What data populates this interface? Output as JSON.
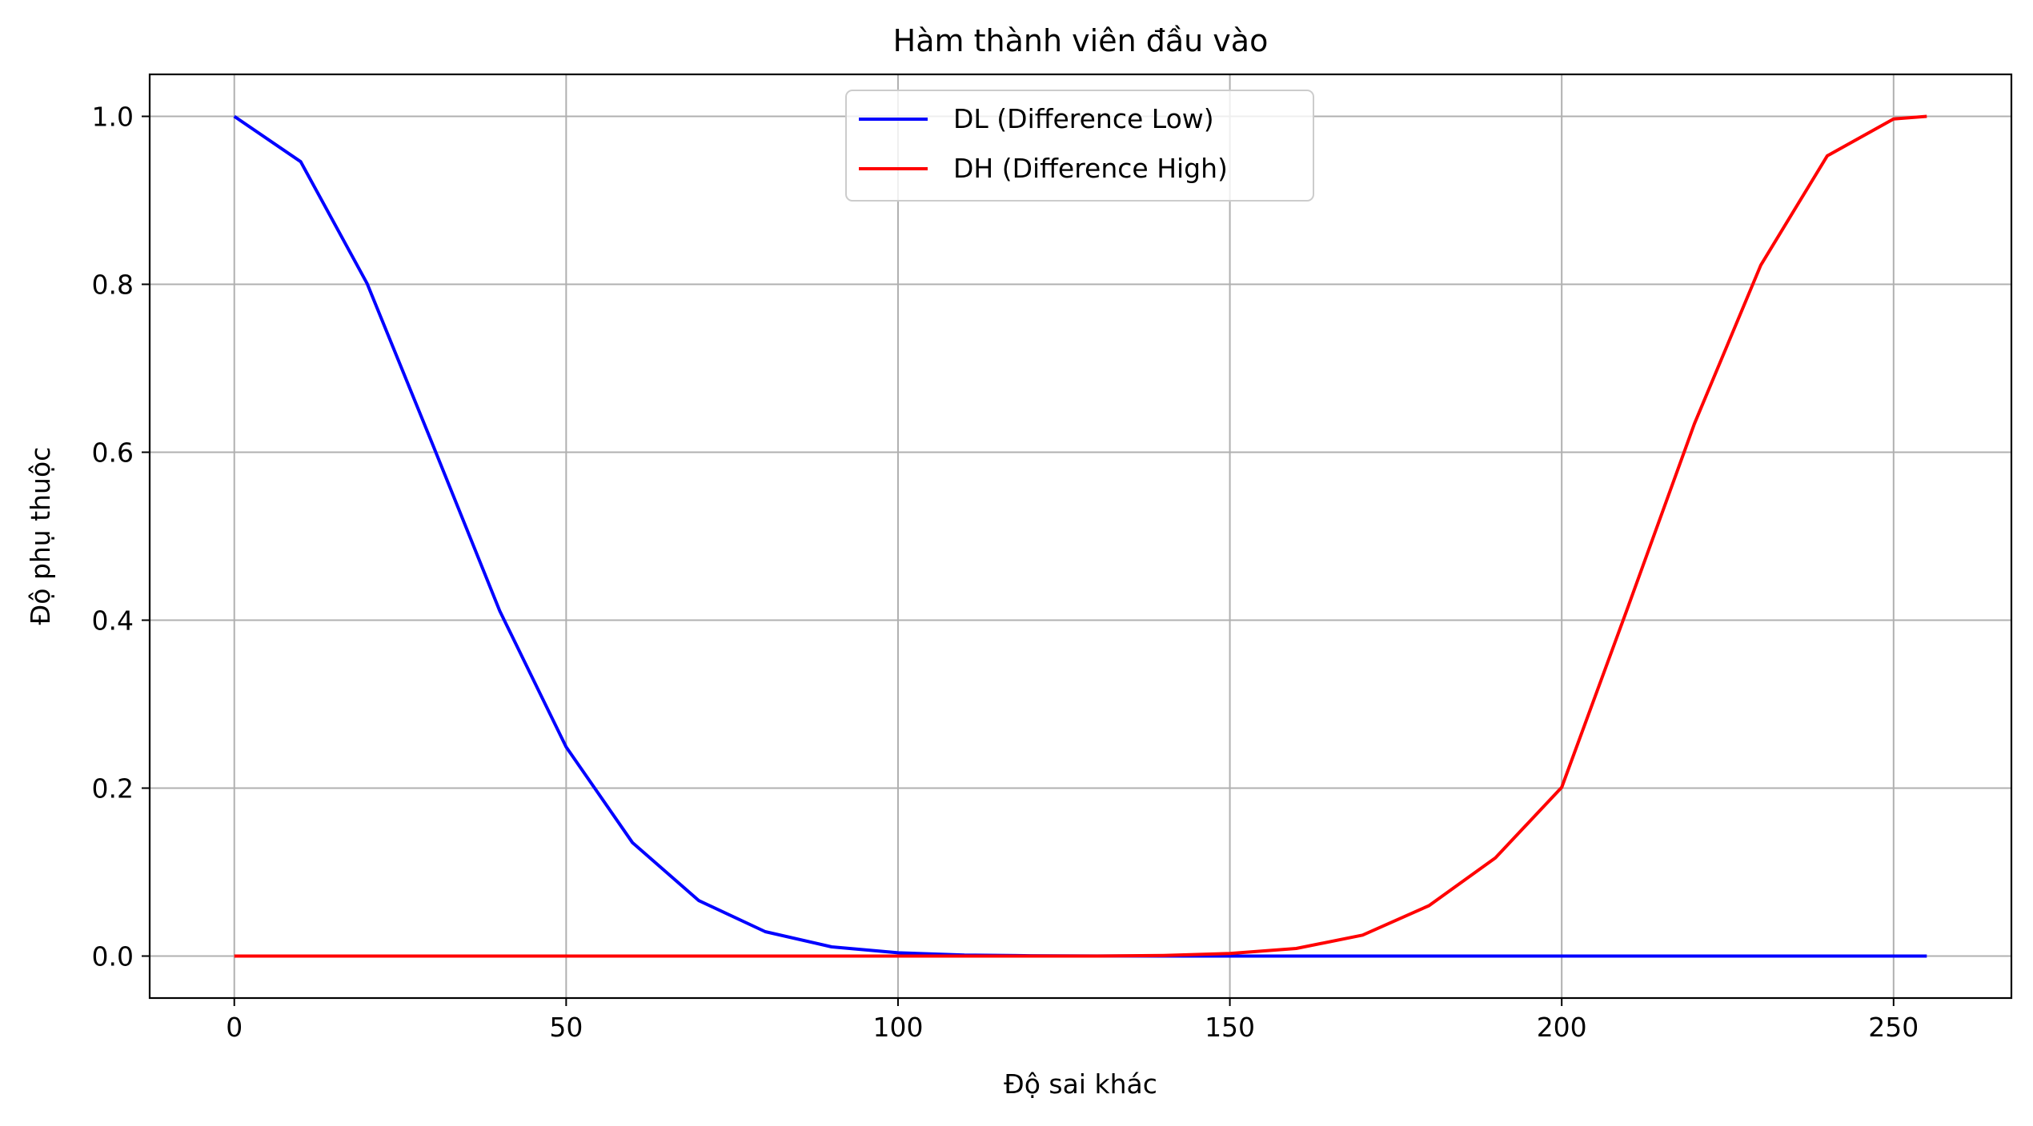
{
  "chart_data": {
    "type": "line",
    "title": "Hàm thành viên đầu vào",
    "xlabel": "Độ sai khác",
    "ylabel": "Độ phụ thuộc",
    "xlim": [
      -12.75,
      267.75
    ],
    "ylim": [
      -0.05,
      1.05
    ],
    "xticks": [
      0,
      50,
      100,
      150,
      200,
      250
    ],
    "xtick_labels": [
      "0",
      "50",
      "100",
      "150",
      "200",
      "250"
    ],
    "yticks": [
      0.0,
      0.2,
      0.4,
      0.6,
      0.8,
      1.0
    ],
    "ytick_labels": [
      "0.0",
      "0.2",
      "0.4",
      "0.6",
      "0.8",
      "1.0"
    ],
    "grid": true,
    "legend_position": "top-center",
    "x": [
      0,
      10,
      20,
      30,
      40,
      50,
      60,
      70,
      80,
      90,
      100,
      110,
      120,
      130,
      140,
      150,
      160,
      170,
      180,
      190,
      200,
      210,
      220,
      230,
      240,
      250,
      255
    ],
    "series": [
      {
        "name": "DL (Difference Low)",
        "color": "#0000ff",
        "values": [
          1.0,
          0.946,
          0.801,
          0.607,
          0.411,
          0.249,
          0.135,
          0.066,
          0.029,
          0.011,
          0.0039,
          0.0012,
          0.0004,
          0.0001,
          0.0,
          0.0,
          0.0,
          0.0,
          0.0,
          0.0,
          0.0,
          0.0,
          0.0,
          0.0,
          0.0,
          0.0,
          0.0
        ]
      },
      {
        "name": "DH (Difference High)",
        "color": "#ff0000",
        "values": [
          0.0,
          0.0,
          0.0,
          0.0,
          0.0,
          0.0,
          0.0,
          0.0,
          0.0,
          0.0,
          0.0,
          0.0,
          0.0,
          0.0,
          0.0007,
          0.003,
          0.009,
          0.025,
          0.06,
          0.117,
          0.201,
          0.416,
          0.634,
          0.823,
          0.953,
          0.997,
          1.0
        ]
      }
    ]
  }
}
